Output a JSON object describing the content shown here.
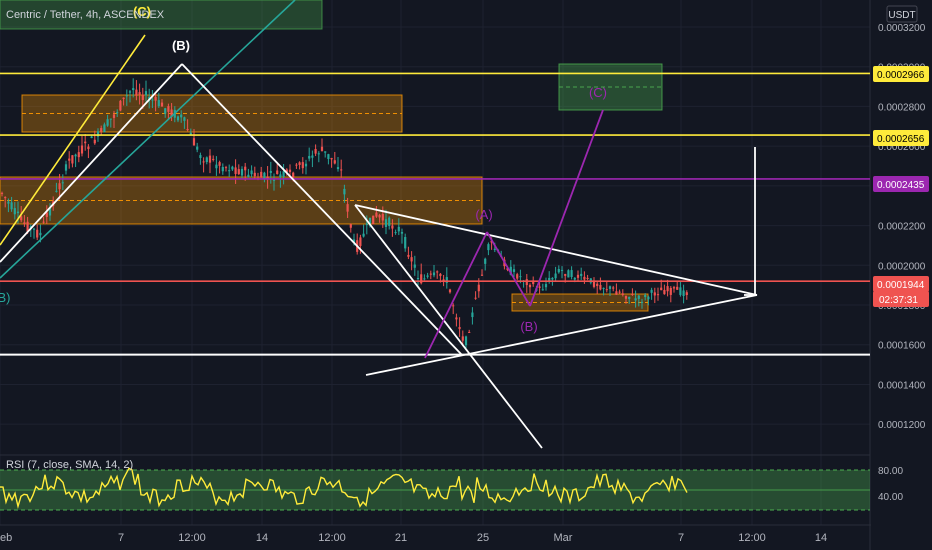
{
  "header": {
    "symbol_title": "Centric / Tether, 4h, ASCENDEX",
    "currency": "USDT"
  },
  "chart_data": [
    {
      "type": "candlestick",
      "title": "Centric / Tether, 4h, ASCENDEX",
      "y_scale_max": 0.00032,
      "y_scale_min": 0.000108,
      "yticks": [
        "0.0003200",
        "0.0003000",
        "0.0002800",
        "0.0002600",
        "0.0002400",
        "0.0002200",
        "0.0002000",
        "0.0001800",
        "0.0001600",
        "0.0001400",
        "0.0001200"
      ],
      "xticks": [
        "eb",
        "7",
        "12:00",
        "14",
        "12:00",
        "21",
        "25",
        "Mar",
        "7",
        "12:00",
        "14"
      ],
      "price_labels": [
        {
          "value": "0.0002966",
          "color": "#ffeb3b",
          "text_color": "#000000"
        },
        {
          "value": "0.0002656",
          "color": "#ffeb3b",
          "text_color": "#000000"
        },
        {
          "value": "0.0002435",
          "color": "#9c27b0",
          "text_color": "#ffffff"
        },
        {
          "value": "0.0001944",
          "color": "#ef5350",
          "text_color": "#ffffff"
        }
      ],
      "countdown": "02:37:31",
      "horizontal_levels": [
        {
          "value": 0.0002966,
          "color": "#ffeb3b"
        },
        {
          "value": 0.0002656,
          "color": "#ffeb3b"
        },
        {
          "value": 0.0002435,
          "color": "#9c27b0"
        },
        {
          "value": 0.000192,
          "color": "#ef5350"
        },
        {
          "value": 0.000155,
          "color": "#ffffff"
        }
      ],
      "wave_labels": [
        {
          "text": "(C)",
          "color": "#ffeb3b"
        },
        {
          "text": "(B)",
          "color": "#ffffff"
        },
        {
          "text": "(A)",
          "color": "#9c27b0"
        },
        {
          "text": "(B)",
          "color": "#9c27b0"
        },
        {
          "text": "(C)",
          "color": "#9c27b0"
        },
        {
          "text": "B)",
          "color": "#26a69a"
        }
      ],
      "candle_colors": {
        "up": "#26a69a",
        "down": "#ef5350"
      },
      "zone_colors": {
        "orange": "#ff9800",
        "green": "#4caf50"
      }
    },
    {
      "type": "line",
      "title": "RSI (7, close, SMA, 14, 2)",
      "series": [
        {
          "name": "RSI",
          "color": "#ffeb3b"
        }
      ],
      "yticks": [
        "80.00",
        "40.00"
      ],
      "band": {
        "upper": 80,
        "lower": 20,
        "color": "#4caf50"
      }
    }
  ]
}
